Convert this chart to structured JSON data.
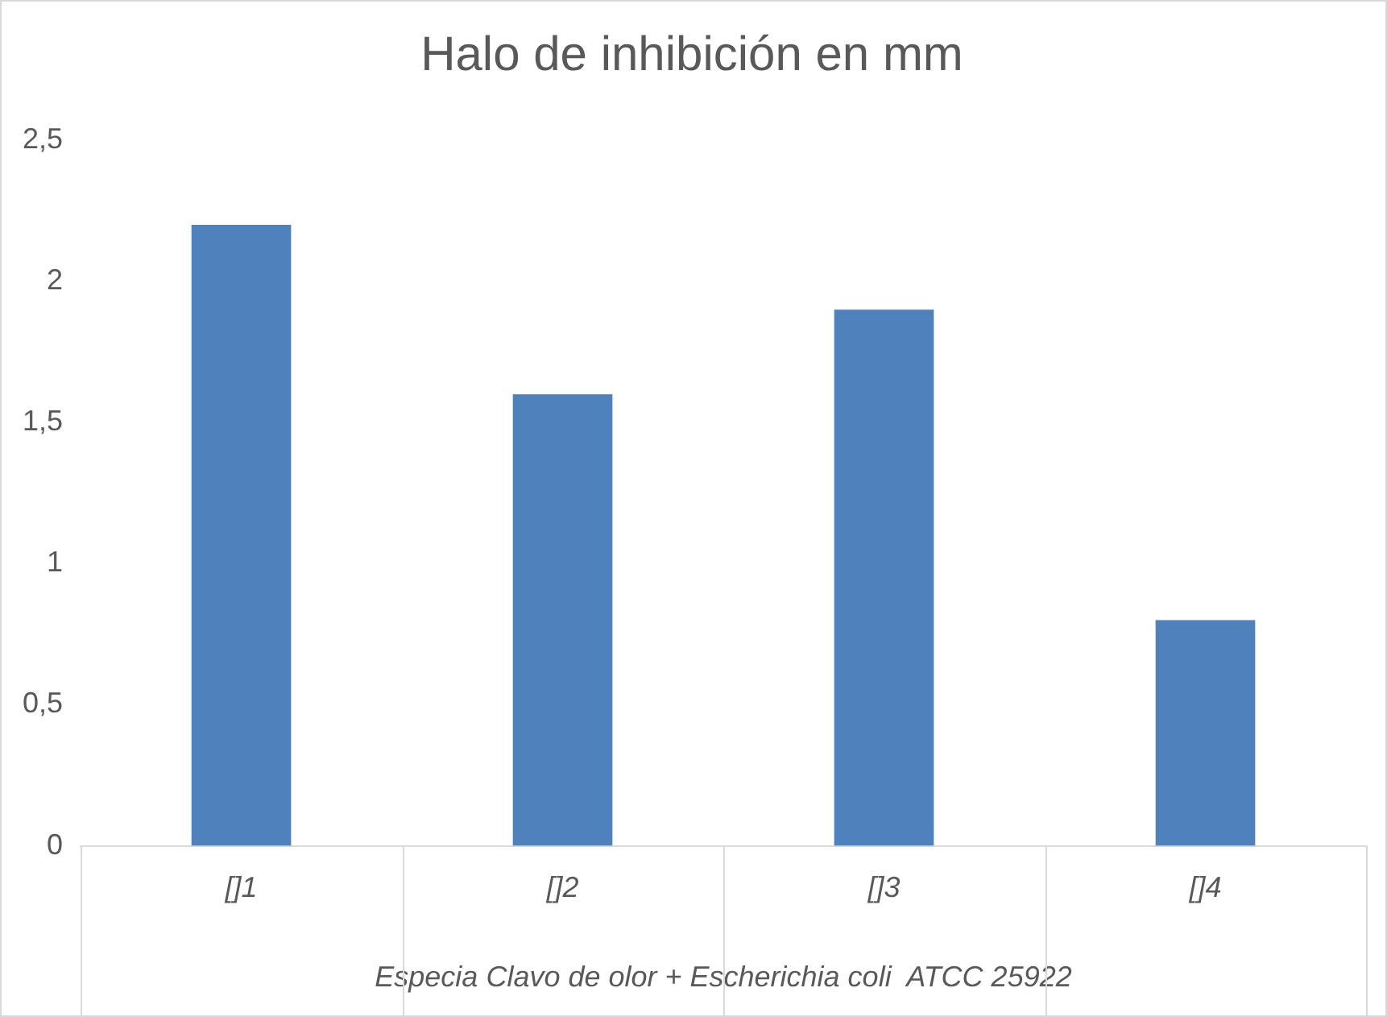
{
  "chart_data": {
    "type": "bar",
    "title": "Halo de inhibición en mm",
    "xlabel": "Especia Clavo de olor + Escherichia coli  ATCC 25922",
    "categories": [
      "[]1",
      "[]2",
      "[]3",
      "[]4"
    ],
    "values": [
      2.2,
      1.6,
      1.9,
      0.8
    ],
    "color": "#4f81bd",
    "ylim": [
      0,
      2.5
    ],
    "yticks": [
      0,
      {
        "value": 0.5,
        "label": "0,5"
      },
      1,
      {
        "value": 1.5,
        "label": "1,5"
      },
      2,
      {
        "value": 2.5,
        "label": "2,5"
      }
    ],
    "grid": false,
    "legend": false
  }
}
